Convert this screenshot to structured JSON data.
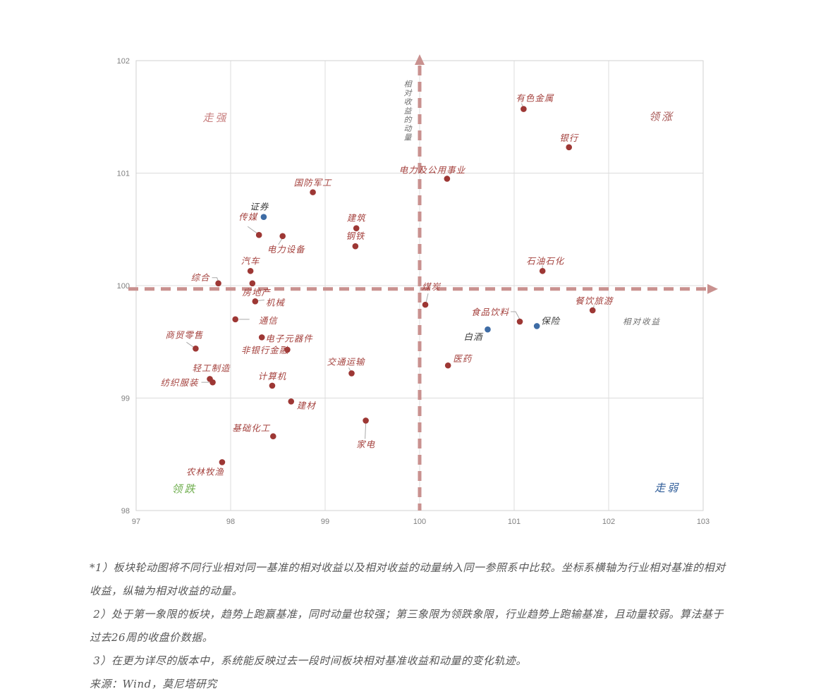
{
  "chart_data": {
    "type": "scatter",
    "title": "板块轮动图",
    "x_axis": {
      "label": "相对收益",
      "min": 97,
      "max": 103,
      "ticks": [
        97,
        98,
        99,
        100,
        101,
        102,
        103
      ]
    },
    "y_axis": {
      "label": "相对收益的动量",
      "min": 98,
      "max": 102,
      "ticks": [
        98,
        99,
        100,
        101,
        102
      ]
    },
    "grid": true,
    "crosshair": {
      "x": 100,
      "y": 99.97,
      "color": "#c9918f"
    },
    "quadrant_labels": [
      {
        "text": "走强",
        "x": 97.84,
        "y": 101.46,
        "color": "#c98282"
      },
      {
        "text": "领涨",
        "x": 102.56,
        "y": 101.47,
        "color": "#a85755"
      },
      {
        "text": "领跌",
        "x": 97.51,
        "y": 98.16,
        "color": "#6fae4e"
      },
      {
        "text": "走弱",
        "x": 102.62,
        "y": 98.17,
        "color": "#2f5d99"
      }
    ],
    "series": [
      {
        "name": "sectors-red",
        "point_color": "#9d3734",
        "label_color": "#a5433f",
        "points": [
          {
            "label": "有色金属",
            "x": 101.1,
            "y": 101.57,
            "anchor": "start",
            "dx": -11,
            "dy": -11,
            "leader": [
              [
                -3,
                -8
              ],
              [
                -1,
                -3
              ]
            ]
          },
          {
            "label": "银行",
            "x": 101.58,
            "y": 101.23,
            "anchor": "middle",
            "dx": 0,
            "dy": -9,
            "leader": null
          },
          {
            "label": "电力及公用事业",
            "x": 100.29,
            "y": 100.95,
            "anchor": "middle",
            "dx": -21,
            "dy": -8,
            "leader": null
          },
          {
            "label": "国防军工",
            "x": 98.87,
            "y": 100.83,
            "anchor": "middle",
            "dx": 0,
            "dy": -9,
            "leader": null
          },
          {
            "label": "建筑",
            "x": 99.33,
            "y": 100.51,
            "anchor": "middle",
            "dx": 0,
            "dy": -10,
            "leader": null
          },
          {
            "label": "钢铁",
            "x": 99.32,
            "y": 100.35,
            "anchor": "middle",
            "dx": 0,
            "dy": -10,
            "leader": null
          },
          {
            "label": "传媒",
            "x": 98.3,
            "y": 100.45,
            "anchor": "start",
            "dx": -29,
            "dy": -21,
            "leader": [
              [
                -16,
                -12
              ],
              [
                -2,
                -2
              ]
            ]
          },
          {
            "label": "电力设备",
            "x": 98.55,
            "y": 100.44,
            "anchor": "start",
            "dx": -22,
            "dy": 23,
            "leader": [
              [
                -1,
                4
              ],
              [
                -6,
                12
              ]
            ]
          },
          {
            "label": "石油石化",
            "x": 101.3,
            "y": 100.13,
            "anchor": "middle",
            "dx": 4,
            "dy": -10,
            "leader": [
              [
                0,
                -8
              ],
              [
                0,
                -3
              ]
            ]
          },
          {
            "label": "汽车",
            "x": 98.21,
            "y": 100.13,
            "anchor": "middle",
            "dx": 0,
            "dy": -10,
            "leader": null
          },
          {
            "label": "综合",
            "x": 97.87,
            "y": 100.02,
            "anchor": "end",
            "dx": -12,
            "dy": -4,
            "leader": [
              [
                -9,
                -8
              ],
              [
                -2,
                -8
              ],
              [
                0,
                -3
              ]
            ]
          },
          {
            "label": "房地产",
            "x": 98.23,
            "y": 100.02,
            "anchor": "middle",
            "dx": 6,
            "dy": 17,
            "leader": null
          },
          {
            "label": "机械",
            "x": 98.26,
            "y": 99.86,
            "anchor": "start",
            "dx": 15,
            "dy": 6,
            "leader": [
              [
                4,
                -1
              ],
              [
                13,
                -2
              ]
            ]
          },
          {
            "label": "通信",
            "x": 98.05,
            "y": 99.7,
            "anchor": "start",
            "dx": 33,
            "dy": 6,
            "leader": [
              [
                5,
                0
              ],
              [
                20,
                0
              ]
            ]
          },
          {
            "label": "煤炭",
            "x": 100.06,
            "y": 99.83,
            "anchor": "start",
            "dx": -5,
            "dy": -21,
            "leader": [
              [
                4,
                -16
              ],
              [
                1,
                -3
              ]
            ]
          },
          {
            "label": "餐饮旅游",
            "x": 101.83,
            "y": 99.78,
            "anchor": "middle",
            "dx": 2,
            "dy": -9,
            "leader": [
              [
                2,
                -7
              ],
              [
                1,
                -2
              ]
            ]
          },
          {
            "label": "食品饮料",
            "x": 101.06,
            "y": 99.68,
            "anchor": "end",
            "dx": -15,
            "dy": -9,
            "leader": [
              [
                -13,
                -14
              ],
              [
                -6,
                -14
              ],
              [
                0,
                -3
              ]
            ]
          },
          {
            "label": "商贸零售",
            "x": 97.63,
            "y": 99.44,
            "anchor": "start",
            "dx": -43,
            "dy": -15,
            "leader": [
              [
                -13,
                -9
              ],
              [
                -3,
                -2
              ]
            ]
          },
          {
            "label": "电子元器件",
            "x": 98.33,
            "y": 99.54,
            "anchor": "start",
            "dx": 5,
            "dy": 6,
            "leader": null
          },
          {
            "label": "非银行金融",
            "x": 98.6,
            "y": 99.43,
            "anchor": "end",
            "dx": 2,
            "dy": 5,
            "leader": null
          },
          {
            "label": "交通运输",
            "x": 99.28,
            "y": 99.22,
            "anchor": "middle",
            "dx": -8,
            "dy": -12,
            "leader": [
              [
                -4,
                -8
              ],
              [
                -1,
                -2
              ]
            ]
          },
          {
            "label": "医药",
            "x": 100.3,
            "y": 99.29,
            "anchor": "start",
            "dx": 7,
            "dy": -5,
            "leader": null
          },
          {
            "label": "轻工制造",
            "x": 97.78,
            "y": 99.17,
            "anchor": "start",
            "dx": -25,
            "dy": -11,
            "leader": null
          },
          {
            "label": "纺织服装",
            "x": 97.81,
            "y": 99.14,
            "anchor": "end",
            "dx": -20,
            "dy": 5,
            "leader": [
              [
                -16,
                0
              ],
              [
                -5,
                0
              ]
            ]
          },
          {
            "label": "计算机",
            "x": 98.44,
            "y": 99.11,
            "anchor": "middle",
            "dx": 0,
            "dy": -9,
            "leader": null
          },
          {
            "label": "建材",
            "x": 98.64,
            "y": 98.97,
            "anchor": "start",
            "dx": 8,
            "dy": 10,
            "leader": null
          },
          {
            "label": "基础化工",
            "x": 98.45,
            "y": 98.66,
            "anchor": "end",
            "dx": -4,
            "dy": -7,
            "leader": null
          },
          {
            "label": "家电",
            "x": 99.43,
            "y": 98.8,
            "anchor": "middle",
            "dx": 0,
            "dy": 38,
            "leader": [
              [
                0,
                4
              ],
              [
                -1,
                26
              ]
            ]
          },
          {
            "label": "农林牧渔",
            "x": 97.91,
            "y": 98.43,
            "anchor": "middle",
            "dx": -24,
            "dy": 18,
            "leader": null
          }
        ]
      },
      {
        "name": "sectors-blue",
        "point_color": "#3e6ca5",
        "label_color": "#3b3b3b",
        "points": [
          {
            "label": "证券",
            "x": 98.35,
            "y": 100.61,
            "anchor": "middle",
            "dx": -6,
            "dy": -10,
            "leader": null
          },
          {
            "label": "白酒",
            "x": 100.72,
            "y": 99.61,
            "anchor": "end",
            "dx": -7,
            "dy": 15,
            "leader": null
          },
          {
            "label": "保险",
            "x": 101.24,
            "y": 99.64,
            "anchor": "start",
            "dx": 6,
            "dy": -3,
            "leader": null
          }
        ]
      }
    ]
  },
  "footnotes": {
    "color": "#575757",
    "lines": [
      "*1）板块轮动图将不同行业相对同一基准的相对收益以及相对收益的动量纳入同一参照系中比较。坐标系横轴为行业相对基准的相对",
      "收益，纵轴为相对收益的动量。",
      " 2）处于第一象限的板块，趋势上跑赢基准，同时动量也较强；第三象限为领跌象限，行业趋势上跑输基准，且动量较弱。算法基于",
      "过去26周的收盘价数据。",
      " 3）在更为详尽的版本中，系统能反映过去一段时间板块相对基准收益和动量的变化轨迹。",
      "来源：Wind，莫尼塔研究"
    ]
  },
  "style_colors": {
    "gridline": "#dcdcdc",
    "plot_border": "#d2d2d2",
    "tick_label": "#7f7f7f",
    "axis_title": "#6e6e6e",
    "leader_line": "#a9a9a9",
    "crosshair": "#c9918f"
  }
}
